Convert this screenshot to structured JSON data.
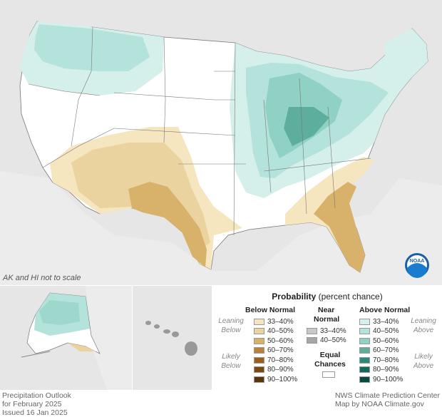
{
  "note": "AK and HI not to scale",
  "footer": {
    "left_line1": "Precipitation Outlook",
    "left_line2": "for February 2025",
    "left_line3": "Issued 16 Jan 2025",
    "right_line1": "NWS Climate Prediction Center",
    "right_line2": "Map by NOAA Climate.gov"
  },
  "logo_text": "NOAA",
  "legend": {
    "title_bold": "Probability",
    "title_rest": " (percent chance)",
    "below_head": "Below Normal",
    "near_head_1": "Near",
    "near_head_2": "Normal",
    "above_head": "Above Normal",
    "leaning_below_1": "Leaning",
    "leaning_below_2": "Below",
    "likely_below_1": "Likely",
    "likely_below_2": "Below",
    "leaning_above_1": "Leaning",
    "leaning_above_2": "Above",
    "likely_above_1": "Likely",
    "likely_above_2": "Above",
    "equal_1": "Equal",
    "equal_2": "Chances",
    "below": [
      {
        "label": "33–40%",
        "color": "#f5e6c0"
      },
      {
        "label": "40–50%",
        "color": "#ebd3a0"
      },
      {
        "label": "50–60%",
        "color": "#d8b26b"
      },
      {
        "label": "60–70%",
        "color": "#b9813a"
      },
      {
        "label": "70–80%",
        "color": "#99601e"
      },
      {
        "label": "80–90%",
        "color": "#7a4a12"
      },
      {
        "label": "90–100%",
        "color": "#5a340a"
      }
    ],
    "near": [
      {
        "label": "33–40%",
        "color": "#c8c8c8"
      },
      {
        "label": "40–50%",
        "color": "#a6a6a6"
      }
    ],
    "above": [
      {
        "label": "33–40%",
        "color": "#d5efeb"
      },
      {
        "label": "40–50%",
        "color": "#b3e3da"
      },
      {
        "label": "50–60%",
        "color": "#8fd1c3"
      },
      {
        "label": "60–70%",
        "color": "#5eae9d"
      },
      {
        "label": "70–80%",
        "color": "#2d8a78"
      },
      {
        "label": "80–90%",
        "color": "#146a5a"
      },
      {
        "label": "90–100%",
        "color": "#0a4a3e"
      }
    ]
  }
}
